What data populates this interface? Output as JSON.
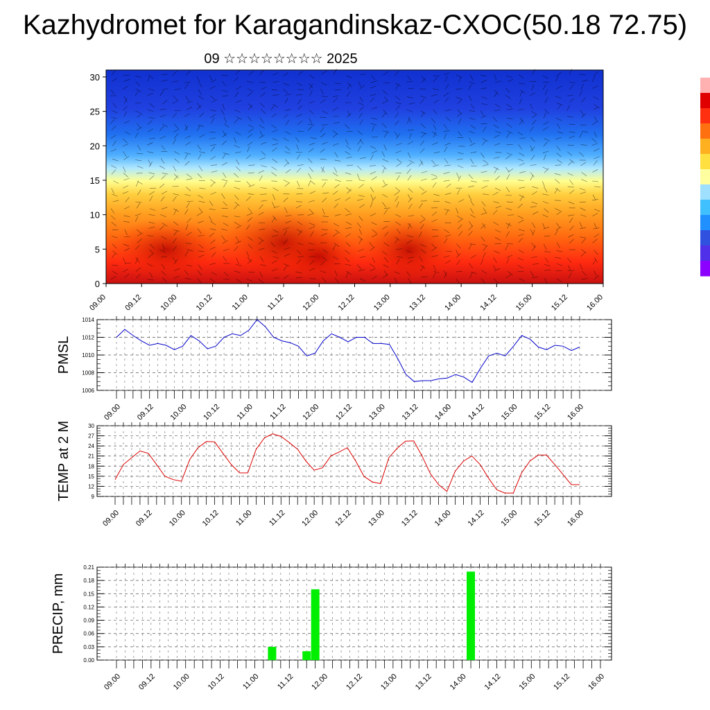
{
  "header": {
    "title": "Kazhydromet for Karagandinskaz-CXOC(50.18 72.75)",
    "subtitle": "09 ☆☆☆☆☆☆☆☆ 2025"
  },
  "chart_data": [
    {
      "type": "heatmap",
      "name": "vertical-cross-section",
      "x_ticks": [
        "09.00",
        "09.12",
        "10.00",
        "10.12",
        "11.00",
        "11.12",
        "12.00",
        "12.12",
        "13.00",
        "13.12",
        "14.00",
        "14.12",
        "15.00",
        "15.12",
        "16.00"
      ],
      "y_ticks": [
        "0",
        "5",
        "10",
        "15",
        "20",
        "25",
        "30"
      ],
      "ylim": [
        0,
        31
      ],
      "colorbar_colors": [
        "#8b00ff",
        "#5030e8",
        "#3050e0",
        "#2090ff",
        "#40c0ff",
        "#a0e0ff",
        "#ffffa0",
        "#ffe040",
        "#ffb020",
        "#ff7010",
        "#ff3010",
        "#e00000",
        "#ffb0b0"
      ]
    },
    {
      "type": "line",
      "ylabel": "PMSL",
      "x_ticks": [
        "09.00",
        "09.12",
        "10.00",
        "10.12",
        "11.00",
        "11.12",
        "12.00",
        "12.12",
        "13.00",
        "13.12",
        "14.00",
        "14.12",
        "15.00",
        "15.12",
        "16.00"
      ],
      "y_ticks": [
        "1006",
        "1008",
        "1010",
        "1012",
        "1014"
      ],
      "ylim": [
        1006,
        1014
      ],
      "color": "#0000cc",
      "values": [
        1012.0,
        1012.9,
        1012.2,
        1011.6,
        1011.1,
        1011.3,
        1011.1,
        1010.6,
        1011.0,
        1012.2,
        1011.6,
        1010.7,
        1011.0,
        1012.0,
        1012.4,
        1012.2,
        1012.8,
        1014.0,
        1013.2,
        1012.0,
        1011.6,
        1011.4,
        1011.0,
        1009.9,
        1010.2,
        1011.6,
        1012.4,
        1012.0,
        1011.5,
        1012.0,
        1012.0,
        1011.3,
        1011.3,
        1011.2,
        1009.6,
        1007.8,
        1007.0,
        1007.1,
        1007.1,
        1007.3,
        1007.4,
        1007.8,
        1007.5,
        1006.9,
        1008.5,
        1009.9,
        1010.2,
        1009.9,
        1011.0,
        1012.2,
        1011.8,
        1010.9,
        1010.6,
        1011.1,
        1011.0,
        1010.5,
        1010.9
      ]
    },
    {
      "type": "line",
      "ylabel": "TEMP at 2 M",
      "x_ticks": [
        "09.00",
        "09.12",
        "10.00",
        "10.12",
        "11.00",
        "11.12",
        "12.00",
        "12.12",
        "13.00",
        "13.12",
        "14.00",
        "14.12",
        "15.00",
        "15.12",
        "16.00"
      ],
      "y_ticks": [
        "9",
        "12",
        "15",
        "18",
        "21",
        "24",
        "27",
        "30"
      ],
      "ylim": [
        9,
        30
      ],
      "color": "#dd0000",
      "values": [
        14.0,
        18.5,
        20.5,
        22.5,
        21.8,
        18.5,
        15.0,
        14.0,
        13.5,
        20.0,
        23.5,
        25.3,
        25.2,
        21.8,
        18.5,
        16.0,
        16.0,
        23.0,
        26.4,
        27.6,
        26.8,
        25.0,
        23.0,
        19.5,
        16.8,
        17.5,
        21.0,
        22.2,
        23.5,
        19.5,
        15.0,
        13.3,
        12.8,
        20.5,
        23.3,
        25.4,
        25.5,
        21.0,
        15.8,
        12.5,
        10.5,
        16.5,
        19.5,
        21.0,
        18.5,
        14.5,
        11.0,
        10.0,
        10.0,
        16.0,
        19.5,
        21.3,
        21.3,
        18.5,
        15.5,
        12.5,
        12.5
      ]
    },
    {
      "type": "bar",
      "ylabel": "PRECIP, mm",
      "x_ticks": [
        "09.00",
        "09.12",
        "10.00",
        "10.12",
        "11.00",
        "11.12",
        "12.00",
        "12.12",
        "13.00",
        "13.12",
        "14.00",
        "14.12",
        "15.00",
        "15.12",
        "16.00"
      ],
      "y_ticks": [
        "0.00",
        "0.03",
        "0.06",
        "0.09",
        "0.12",
        "0.15",
        "0.18",
        "0.21"
      ],
      "ylim": [
        0,
        0.21
      ],
      "color": "#00ee00",
      "bars": [
        {
          "x": 11.25,
          "value": 0.03
        },
        {
          "x": 11.75,
          "value": 0.02
        },
        {
          "x": 11.875,
          "value": 0.16
        },
        {
          "x": 14.125,
          "value": 0.2
        }
      ]
    }
  ]
}
